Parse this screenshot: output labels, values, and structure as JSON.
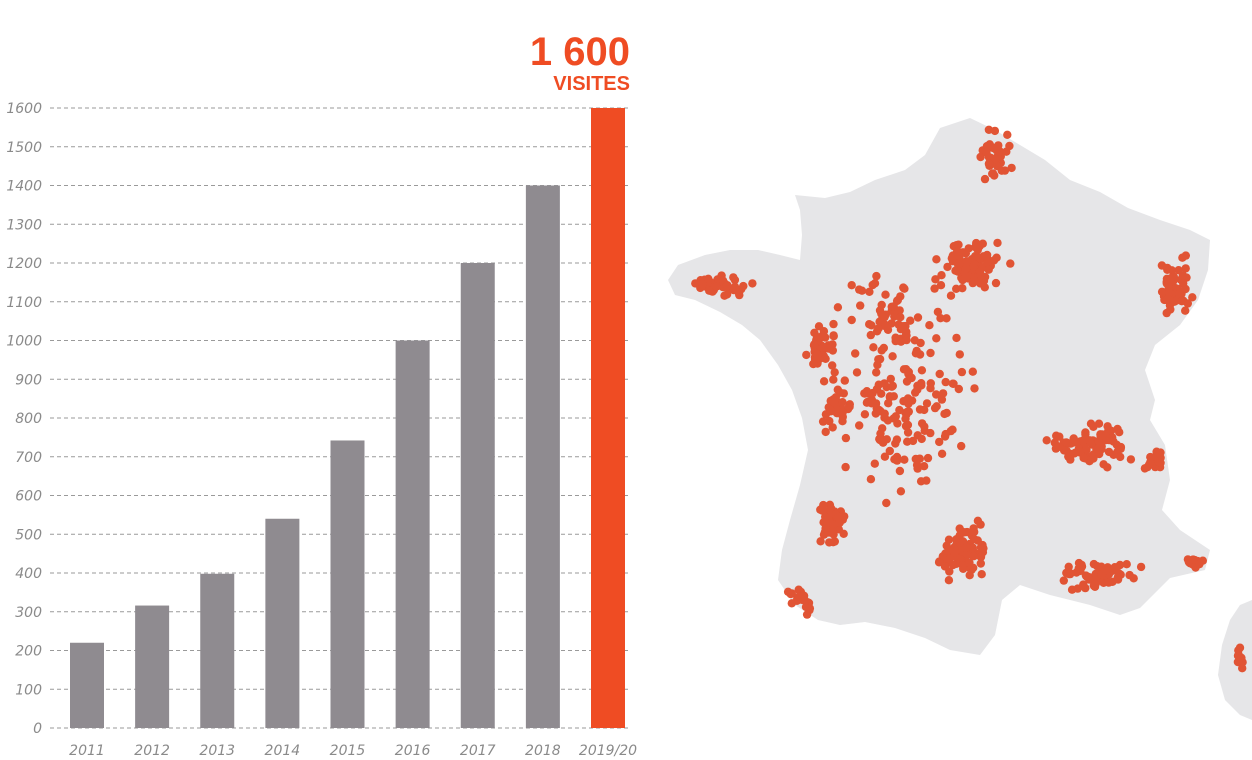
{
  "headline": {
    "value": "1 600",
    "unit": "VISITES"
  },
  "colors": {
    "bar": "#8f8b90",
    "highlight": "#ef4c23",
    "grid": "#9a9a9a",
    "map_land": "#e6e6e8",
    "map_dot": "#e15434"
  },
  "chart_data": {
    "type": "bar",
    "title": "",
    "xlabel": "",
    "ylabel": "",
    "categories": [
      "2011",
      "2012",
      "2013",
      "2014",
      "2015",
      "2016",
      "2017",
      "2018",
      "2019/20"
    ],
    "values": [
      220,
      316,
      398,
      540,
      742,
      1000,
      1200,
      1400,
      1600
    ],
    "highlight_index": 8,
    "ylim": [
      0,
      1600
    ],
    "yticks": [
      0,
      100,
      200,
      300,
      400,
      500,
      600,
      700,
      800,
      900,
      1000,
      1100,
      1200,
      1300,
      1400,
      1500,
      1600
    ],
    "grid": "horizontal dashed",
    "legend": "none"
  },
  "map": {
    "region": "France",
    "marker": "visit locations"
  }
}
